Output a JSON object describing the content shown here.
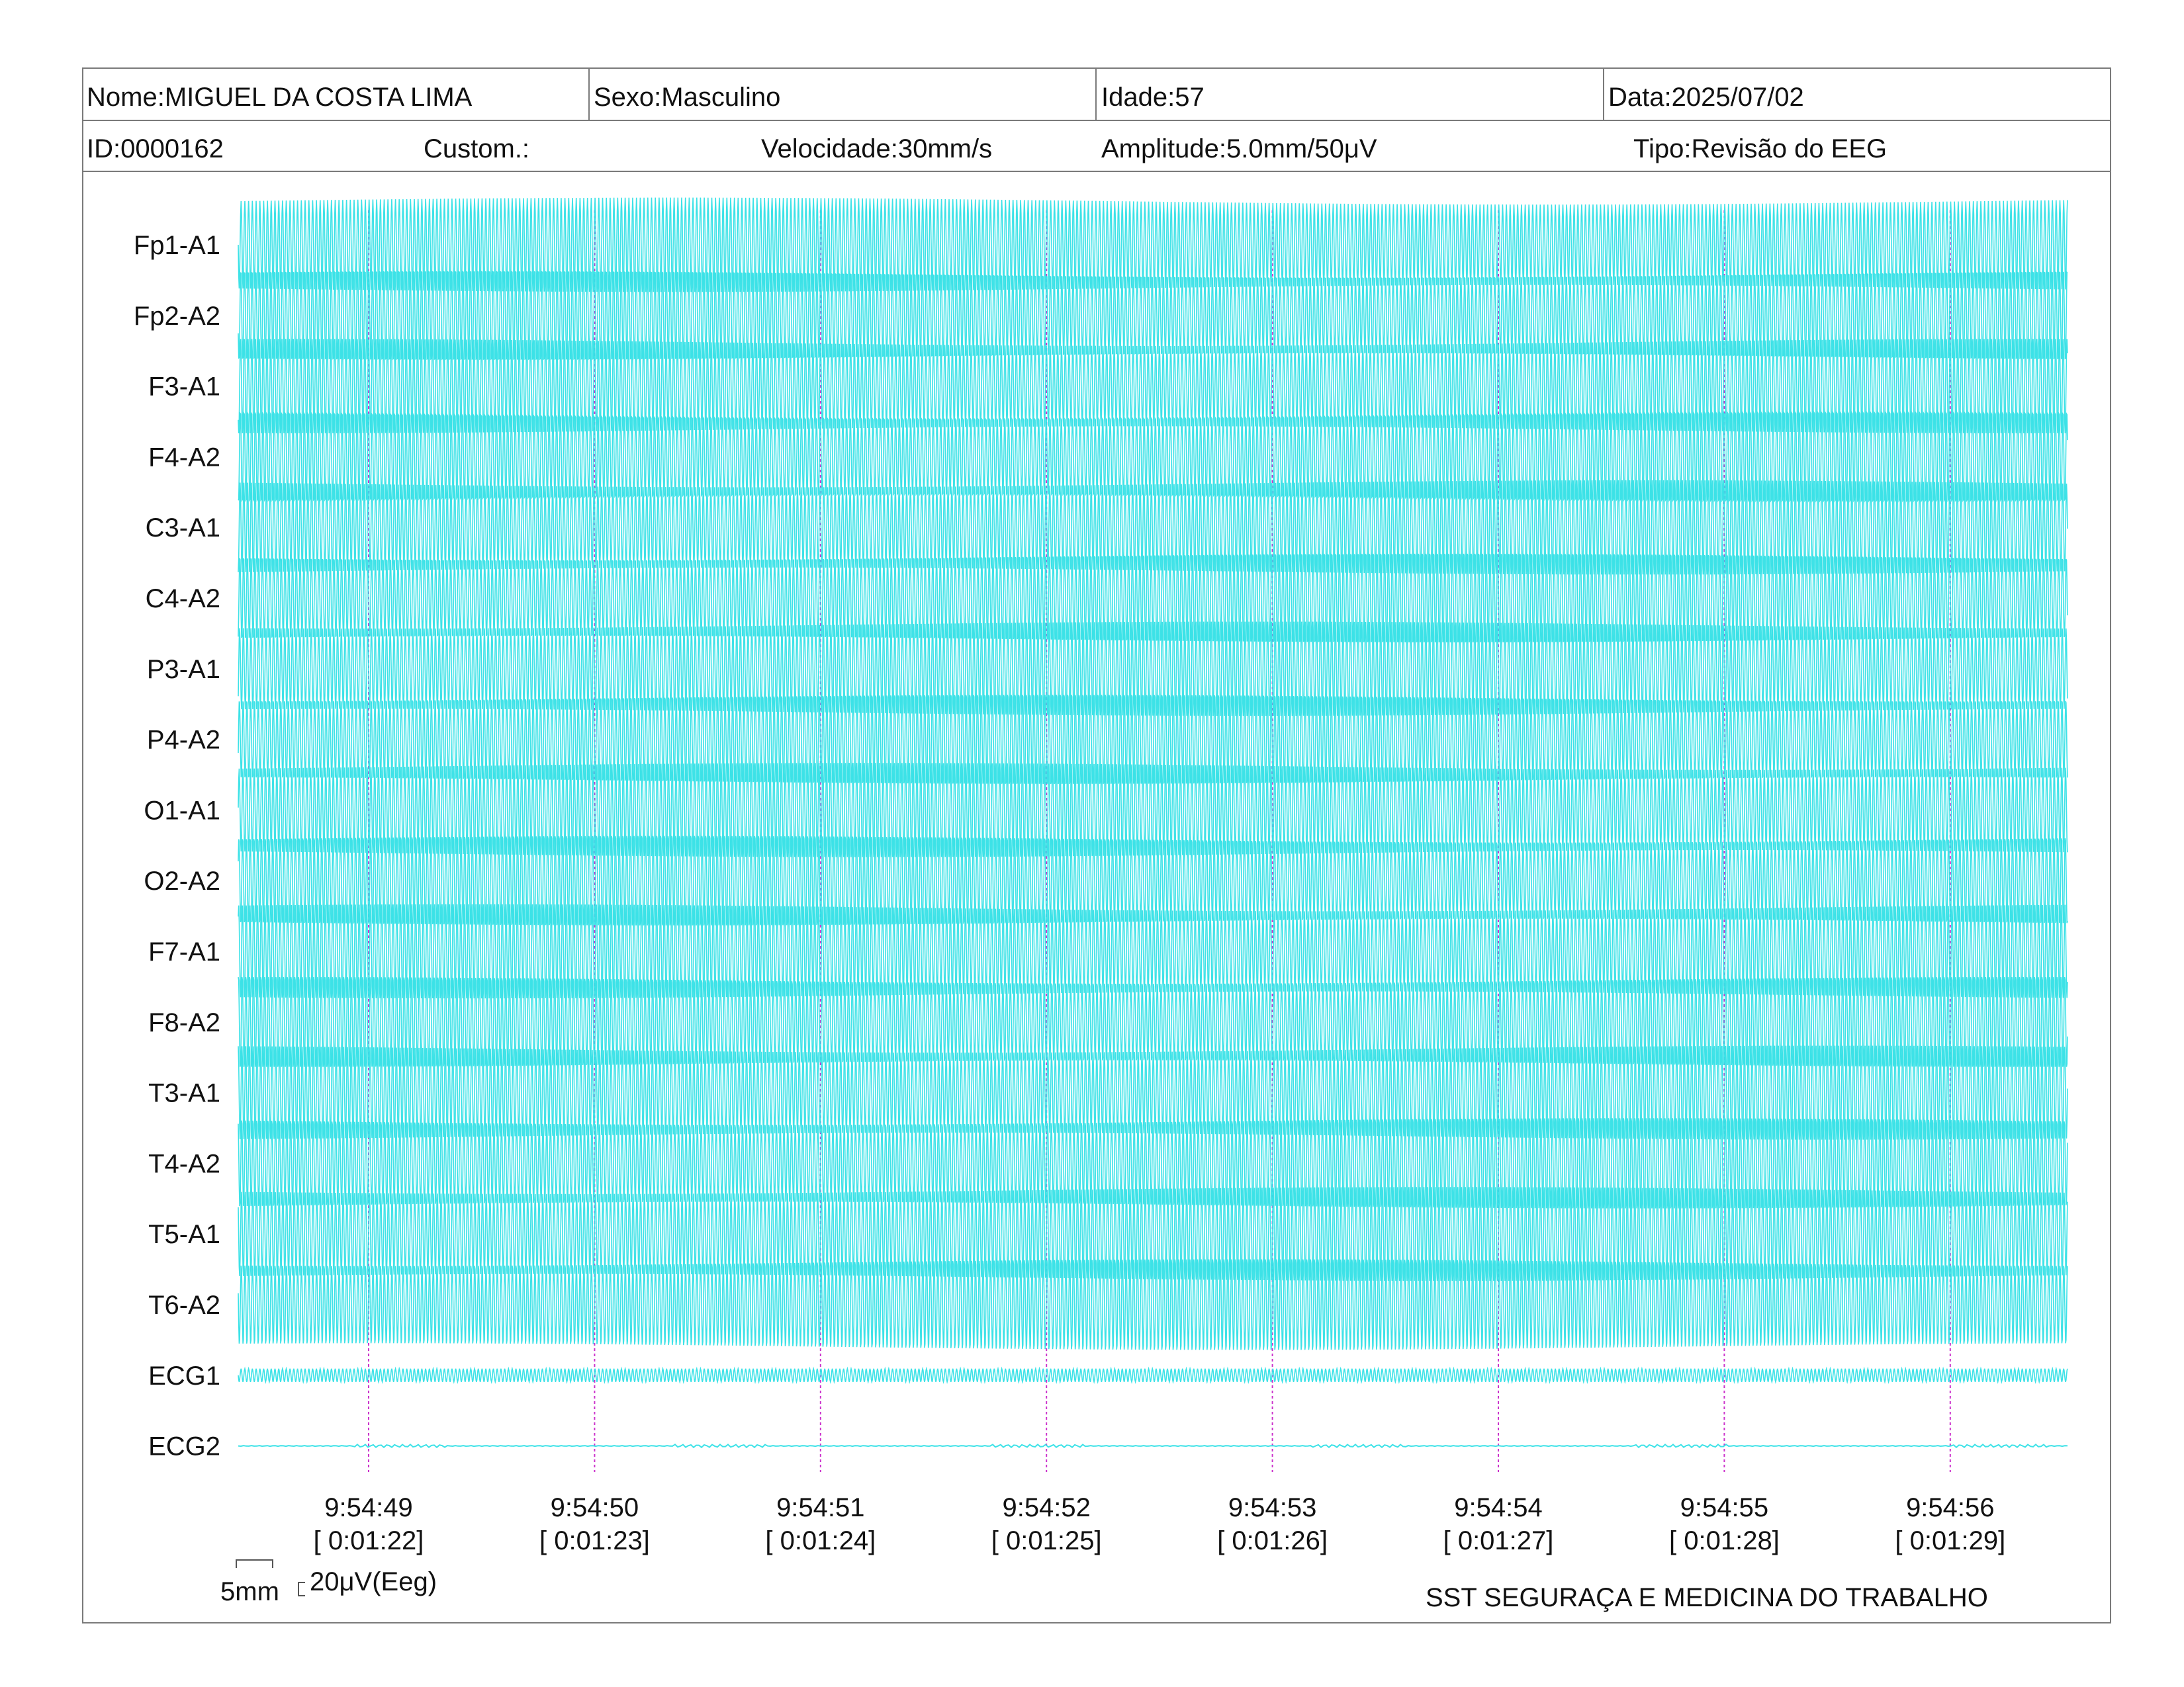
{
  "header": {
    "nome": "Nome:MIGUEL DA COSTA LIMA",
    "sexo": "Sexo:Masculino",
    "idade": "Idade:57",
    "data": "Data:2025/07/02",
    "id": "ID:0000162",
    "custom": "Custom.:",
    "velocidade": "Velocidade:30mm/s",
    "amplitude": "Amplitude:5.0mm/50μV",
    "tipo": "Tipo:Revisão do EEG"
  },
  "chart_data": {
    "type": "line",
    "trace_color": "#33e0e6",
    "marker_color": "#cc33cc",
    "channels": [
      "Fp1-A1",
      "Fp2-A2",
      "F3-A1",
      "F4-A2",
      "C3-A1",
      "C4-A2",
      "P3-A1",
      "P4-A2",
      "O1-A1",
      "O2-A2",
      "F7-A1",
      "F8-A2",
      "T3-A1",
      "T4-A2",
      "T5-A1",
      "T6-A2",
      "ECG1",
      "ECG2"
    ],
    "time_markers": [
      {
        "time": "9:54:49",
        "elapsed": "[ 0:01:22]"
      },
      {
        "time": "9:54:50",
        "elapsed": "[ 0:01:23]"
      },
      {
        "time": "9:54:51",
        "elapsed": "[ 0:01:24]"
      },
      {
        "time": "9:54:52",
        "elapsed": "[ 0:01:25]"
      },
      {
        "time": "9:54:53",
        "elapsed": "[ 0:01:26]"
      },
      {
        "time": "9:54:54",
        "elapsed": "[ 0:01:27]"
      },
      {
        "time": "9:54:55",
        "elapsed": "[ 0:01:28]"
      },
      {
        "time": "9:54:56",
        "elapsed": "[ 0:01:29]"
      }
    ],
    "eeg_frequency_hz": 60,
    "ecg1_frequency_hz": 60
  },
  "scale": {
    "time_scale": "5mm",
    "amplitude_scale": "20μV(Eeg)"
  },
  "footer": {
    "org": "SST SEGURAÇA E MEDICINA DO TRABALHO"
  }
}
